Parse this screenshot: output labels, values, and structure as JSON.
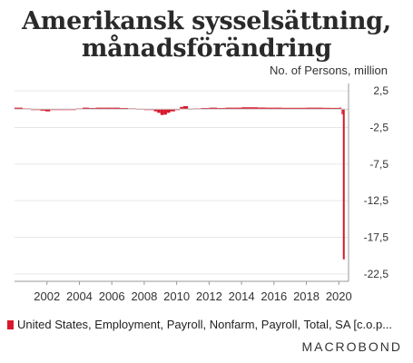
{
  "title_line1": "Amerikansk sysselsättning,",
  "title_line2": "månadsförändring",
  "unit_label": "No. of Persons, million",
  "legend_label": "United States, Employment, Payroll, Nonfarm, Payroll, Total, SA [c.o.p...",
  "brand": "MACROBOND",
  "colors": {
    "series": "#d7192b",
    "axis": "#999999",
    "grid": "#e6e6e6"
  },
  "chart_data": {
    "type": "bar",
    "title": "Amerikansk sysselsättning, månadsförändring",
    "ylabel": "No. of Persons, million",
    "ylim": [
      -23.5,
      3.5
    ],
    "yticks": [
      2.5,
      -2.5,
      -7.5,
      -12.5,
      -17.5,
      -22.5
    ],
    "ytick_labels": [
      "2,5",
      "-2,5",
      "-7,5",
      "-12,5",
      "-17,5",
      "-22,5"
    ],
    "xlim": [
      2000,
      2020.6
    ],
    "xticks": [
      2002,
      2004,
      2006,
      2008,
      2010,
      2012,
      2014,
      2016,
      2018,
      2020
    ],
    "xtick_labels": [
      "2002",
      "2004",
      "2006",
      "2008",
      "2010",
      "2012",
      "2014",
      "2016",
      "2018",
      "2020"
    ],
    "series": [
      {
        "name": "United States, Employment, Payroll, Nonfarm, Payroll, Total, SA [c.o.p...",
        "points": [
          [
            2000.0,
            0.2
          ],
          [
            2000.5,
            0.1
          ],
          [
            2001.0,
            0.0
          ],
          [
            2001.3,
            -0.1
          ],
          [
            2001.6,
            -0.2
          ],
          [
            2001.9,
            -0.3
          ],
          [
            2002.2,
            -0.1
          ],
          [
            2002.6,
            -0.1
          ],
          [
            2003.0,
            -0.1
          ],
          [
            2003.4,
            0.0
          ],
          [
            2003.8,
            0.1
          ],
          [
            2004.2,
            0.2
          ],
          [
            2004.6,
            0.15
          ],
          [
            2005.0,
            0.2
          ],
          [
            2005.5,
            0.2
          ],
          [
            2006.0,
            0.2
          ],
          [
            2006.5,
            0.15
          ],
          [
            2007.0,
            0.1
          ],
          [
            2007.5,
            0.05
          ],
          [
            2008.0,
            0.0
          ],
          [
            2008.3,
            -0.1
          ],
          [
            2008.6,
            -0.3
          ],
          [
            2008.8,
            -0.5
          ],
          [
            2009.0,
            -0.8
          ],
          [
            2009.2,
            -0.75
          ],
          [
            2009.4,
            -0.5
          ],
          [
            2009.6,
            -0.3
          ],
          [
            2009.9,
            -0.1
          ],
          [
            2010.2,
            0.3
          ],
          [
            2010.4,
            0.4
          ],
          [
            2010.7,
            0.05
          ],
          [
            2011.0,
            0.1
          ],
          [
            2011.5,
            0.15
          ],
          [
            2012.0,
            0.2
          ],
          [
            2012.5,
            0.15
          ],
          [
            2013.0,
            0.2
          ],
          [
            2013.5,
            0.2
          ],
          [
            2014.0,
            0.25
          ],
          [
            2014.5,
            0.25
          ],
          [
            2015.0,
            0.22
          ],
          [
            2015.5,
            0.2
          ],
          [
            2016.0,
            0.2
          ],
          [
            2016.5,
            0.18
          ],
          [
            2017.0,
            0.18
          ],
          [
            2017.5,
            0.18
          ],
          [
            2018.0,
            0.2
          ],
          [
            2018.5,
            0.2
          ],
          [
            2019.0,
            0.18
          ],
          [
            2019.5,
            0.17
          ],
          [
            2020.0,
            0.2
          ],
          [
            2020.17,
            -0.7
          ],
          [
            2020.25,
            -20.5
          ]
        ]
      }
    ]
  }
}
